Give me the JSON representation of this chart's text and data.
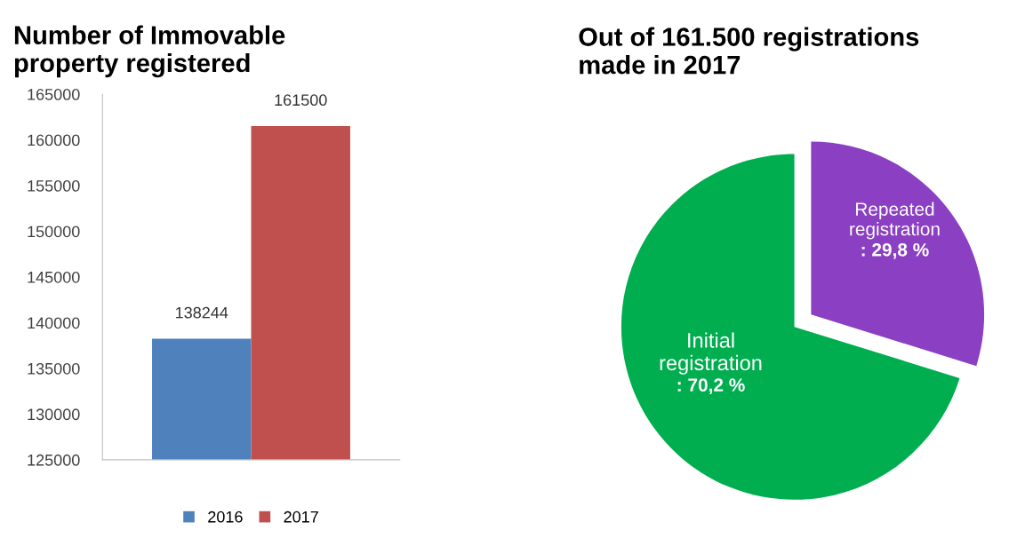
{
  "chart_data": [
    {
      "type": "bar",
      "title": "Number of Immovable\nproperty registered",
      "categories": [
        null
      ],
      "series": [
        {
          "name": "2016",
          "color": "#4f81bd",
          "values": [
            138244
          ]
        },
        {
          "name": "2017",
          "color": "#c0504d",
          "values": [
            161500
          ]
        }
      ],
      "ylim": [
        125000,
        165000
      ],
      "yticks": [
        125000,
        130000,
        135000,
        140000,
        145000,
        150000,
        155000,
        160000,
        165000
      ],
      "data_labels": true,
      "legend": "bottom",
      "grid": false
    },
    {
      "type": "pie",
      "title": "Out of 161.500 registrations\nmade in 2017",
      "categories": [
        "Repeated\nregistration",
        "Initial\nregistration"
      ],
      "values": [
        29.8,
        70.2
      ],
      "colors": [
        "#8b3fc2",
        "#00ae4f"
      ],
      "value_labels": [
        ": 29,8 %",
        ": 70,2 %"
      ]
    }
  ]
}
